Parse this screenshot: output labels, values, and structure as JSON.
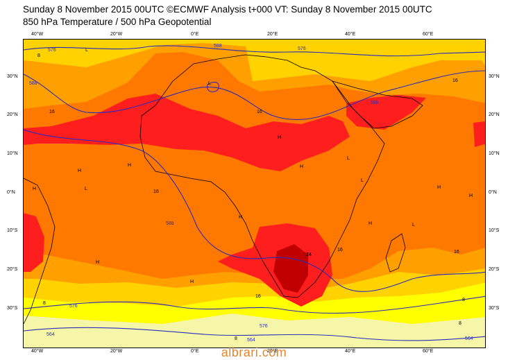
{
  "title": {
    "line1": "Sunday 8 November 2015 00UTC ©ECMWF Analysis t+000 VT: Sunday 8 November 2015 00UTC",
    "line2": "850 hPa Temperature / 500 hPa Geopotential"
  },
  "axes": {
    "lon_labels": [
      "40°W",
      "20°W",
      "0°E",
      "20°E",
      "40°E",
      "60°E"
    ],
    "lat_labels": [
      "30°N",
      "20°N",
      "10°N",
      "0°N",
      "10°S",
      "20°S",
      "30°S"
    ]
  },
  "contour_labels": {
    "geopotential": [
      "576",
      "588",
      "588",
      "576",
      "588",
      "588",
      "576",
      "564",
      "576",
      "564",
      "564"
    ],
    "temperature": [
      "8",
      "16",
      "16",
      "16",
      "16",
      "24",
      "16",
      "16",
      "16",
      "8",
      "8",
      "8",
      "8"
    ]
  },
  "pressure_centers": [
    "L",
    "L",
    "H",
    "H",
    "H",
    "L",
    "H",
    "H",
    "L",
    "H",
    "L",
    "H",
    "H",
    "L",
    "H",
    "H",
    "H"
  ],
  "colors": {
    "band_lt8": "#f6f6a8",
    "band_8_12": "#ffff00",
    "band_12_16": "#ffd200",
    "band_16_20": "#ffa000",
    "band_20_24": "#ff7800",
    "band_24_28": "#ff1e1e",
    "band_gt28": "#c00000",
    "geopotential_line": "#2b2bb8",
    "coastline": "#000000"
  },
  "watermark": "albrari.com"
}
